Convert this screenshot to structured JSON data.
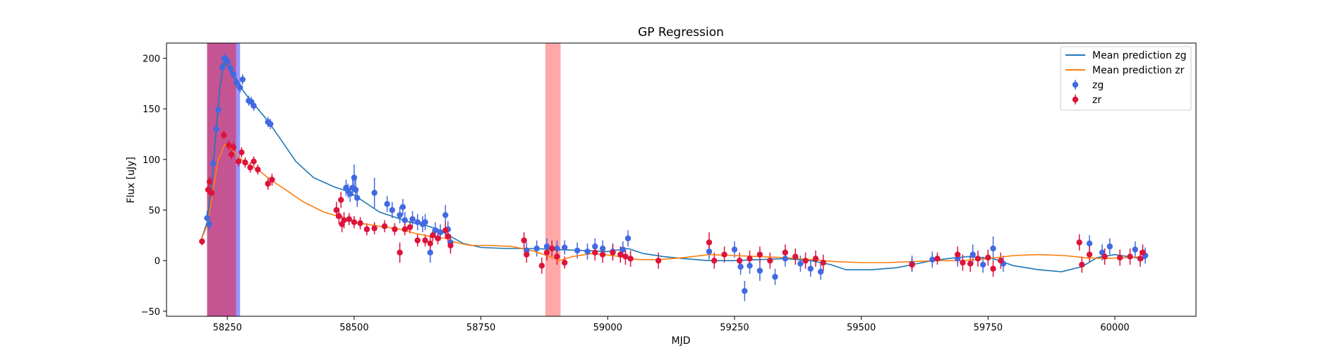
{
  "chart_data": {
    "type": "scatter",
    "title": "GP Regression",
    "xlabel": "MJD",
    "ylabel": "Flux [uJy]",
    "xlim": [
      58130,
      60160
    ],
    "ylim": [
      -55,
      215
    ],
    "xticks": [
      58250,
      58500,
      58750,
      59000,
      59250,
      59500,
      59750,
      60000
    ],
    "yticks": [
      -50,
      0,
      50,
      100,
      150,
      200
    ],
    "grid": false,
    "legend_position": "top-right",
    "spans": [
      {
        "x0": 58210,
        "x1": 58275,
        "color": "#6b6bff",
        "opacity": 0.7
      },
      {
        "x0": 58210,
        "x1": 58267,
        "color": "#d43d6e",
        "opacity": 0.75
      },
      {
        "x0": 58877,
        "x1": 58907,
        "color": "#ff7a7a",
        "opacity": 0.65
      }
    ],
    "lines": [
      {
        "name": "Mean prediction zg",
        "color": "#1f77b4",
        "points": [
          [
            58198,
            20
          ],
          [
            58210,
            38
          ],
          [
            58220,
            80
          ],
          [
            58228,
            130
          ],
          [
            58235,
            170
          ],
          [
            58243,
            195
          ],
          [
            58252,
            192
          ],
          [
            58262,
            183
          ],
          [
            58275,
            172
          ],
          [
            58290,
            162
          ],
          [
            58310,
            150
          ],
          [
            58330,
            138
          ],
          [
            58355,
            120
          ],
          [
            58385,
            98
          ],
          [
            58420,
            82
          ],
          [
            58460,
            73
          ],
          [
            58490,
            68
          ],
          [
            58520,
            58
          ],
          [
            58550,
            48
          ],
          [
            58580,
            43
          ],
          [
            58610,
            38
          ],
          [
            58640,
            35
          ],
          [
            58665,
            31
          ],
          [
            58690,
            24
          ],
          [
            58715,
            17
          ],
          [
            58750,
            13
          ],
          [
            58800,
            12
          ],
          [
            58850,
            12
          ],
          [
            58900,
            11
          ],
          [
            58950,
            10
          ],
          [
            59000,
            9
          ],
          [
            59040,
            12
          ],
          [
            59070,
            7
          ],
          [
            59110,
            4
          ],
          [
            59150,
            2
          ],
          [
            59200,
            0
          ],
          [
            59250,
            0
          ],
          [
            59300,
            1
          ],
          [
            59350,
            2
          ],
          [
            59400,
            0
          ],
          [
            59440,
            -4
          ],
          [
            59470,
            -9
          ],
          [
            59520,
            -9
          ],
          [
            59570,
            -7
          ],
          [
            59610,
            -3
          ],
          [
            59640,
            0
          ],
          [
            59670,
            2
          ],
          [
            59710,
            4
          ],
          [
            59760,
            2
          ],
          [
            59800,
            -5
          ],
          [
            59850,
            -9
          ],
          [
            59895,
            -11
          ],
          [
            59935,
            -6
          ],
          [
            59965,
            3
          ],
          [
            60000,
            6
          ],
          [
            60040,
            3
          ],
          [
            60060,
            2
          ]
        ]
      },
      {
        "name": "Mean prediction zr",
        "color": "#ff7f0e",
        "points": [
          [
            58198,
            20
          ],
          [
            58210,
            35
          ],
          [
            58222,
            70
          ],
          [
            58232,
            100
          ],
          [
            58245,
            115
          ],
          [
            58258,
            110
          ],
          [
            58270,
            103
          ],
          [
            58290,
            95
          ],
          [
            58310,
            90
          ],
          [
            58335,
            80
          ],
          [
            58365,
            70
          ],
          [
            58400,
            58
          ],
          [
            58440,
            48
          ],
          [
            58480,
            42
          ],
          [
            58510,
            37
          ],
          [
            58550,
            34
          ],
          [
            58590,
            31
          ],
          [
            58620,
            27
          ],
          [
            58650,
            24
          ],
          [
            58680,
            22
          ],
          [
            58700,
            18
          ],
          [
            58730,
            15
          ],
          [
            58770,
            15
          ],
          [
            58810,
            14
          ],
          [
            58850,
            10
          ],
          [
            58880,
            5
          ],
          [
            58905,
            0
          ],
          [
            58930,
            4
          ],
          [
            58970,
            7
          ],
          [
            59010,
            5
          ],
          [
            59060,
            1
          ],
          [
            59100,
            1
          ],
          [
            59150,
            3
          ],
          [
            59200,
            6
          ],
          [
            59250,
            5
          ],
          [
            59300,
            4
          ],
          [
            59350,
            3
          ],
          [
            59400,
            1
          ],
          [
            59450,
            -1
          ],
          [
            59500,
            -2
          ],
          [
            59550,
            -2
          ],
          [
            59600,
            -1
          ],
          [
            59650,
            0
          ],
          [
            59700,
            0
          ],
          [
            59750,
            2
          ],
          [
            59800,
            5
          ],
          [
            59850,
            6
          ],
          [
            59900,
            5
          ],
          [
            59940,
            3
          ],
          [
            59980,
            2
          ],
          [
            60020,
            3
          ],
          [
            60060,
            4
          ]
        ]
      }
    ],
    "series": [
      {
        "name": "zg",
        "color": "#4169e1",
        "points": [
          [
            58210,
            42,
            7
          ],
          [
            58214,
            36,
            6
          ],
          [
            58222,
            96,
            5
          ],
          [
            58228,
            130,
            6
          ],
          [
            58232,
            149,
            5
          ],
          [
            58240,
            191,
            6
          ],
          [
            58244,
            200,
            5
          ],
          [
            58250,
            197,
            5
          ],
          [
            58256,
            190,
            5
          ],
          [
            58262,
            184,
            5
          ],
          [
            58268,
            176,
            5
          ],
          [
            58275,
            171,
            5
          ],
          [
            58280,
            179,
            5
          ],
          [
            58292,
            158,
            5
          ],
          [
            58297,
            157,
            5
          ],
          [
            58302,
            153,
            5
          ],
          [
            58330,
            137,
            5
          ],
          [
            58335,
            135,
            5
          ],
          [
            58484,
            72,
            8
          ],
          [
            58488,
            69,
            7
          ],
          [
            58492,
            66,
            8
          ],
          [
            58497,
            72,
            8
          ],
          [
            58500,
            82,
            13
          ],
          [
            58503,
            70,
            10
          ],
          [
            58506,
            62,
            9
          ],
          [
            58540,
            67,
            15
          ],
          [
            58565,
            56,
            8
          ],
          [
            58575,
            50,
            8
          ],
          [
            58590,
            45,
            8
          ],
          [
            58596,
            53,
            8
          ],
          [
            58600,
            40,
            8
          ],
          [
            58615,
            41,
            8
          ],
          [
            58625,
            38,
            8
          ],
          [
            58635,
            36,
            8
          ],
          [
            58640,
            38,
            8
          ],
          [
            58650,
            8,
            10
          ],
          [
            58660,
            30,
            8
          ],
          [
            58670,
            28,
            8
          ],
          [
            58680,
            45,
            10
          ],
          [
            58685,
            31,
            8
          ],
          [
            58690,
            18,
            8
          ],
          [
            58840,
            10,
            8
          ],
          [
            58860,
            12,
            8
          ],
          [
            58880,
            14,
            8
          ],
          [
            58900,
            12,
            8
          ],
          [
            58915,
            13,
            7
          ],
          [
            58940,
            10,
            8
          ],
          [
            58960,
            9,
            8
          ],
          [
            58975,
            14,
            8
          ],
          [
            58990,
            12,
            8
          ],
          [
            59010,
            9,
            8
          ],
          [
            59030,
            11,
            8
          ],
          [
            59040,
            22,
            8
          ],
          [
            59200,
            9,
            8
          ],
          [
            59250,
            11,
            8
          ],
          [
            59262,
            -6,
            8
          ],
          [
            59270,
            -30,
            10
          ],
          [
            59280,
            -5,
            8
          ],
          [
            59300,
            -10,
            10
          ],
          [
            59330,
            -16,
            8
          ],
          [
            59350,
            2,
            8
          ],
          [
            59380,
            -3,
            8
          ],
          [
            59400,
            -8,
            8
          ],
          [
            59420,
            -11,
            8
          ],
          [
            59600,
            -3,
            8
          ],
          [
            59640,
            1,
            8
          ],
          [
            59690,
            2,
            8
          ],
          [
            59720,
            6,
            10
          ],
          [
            59740,
            -4,
            8
          ],
          [
            59760,
            12,
            12
          ],
          [
            59780,
            -3,
            8
          ],
          [
            59950,
            17,
            8
          ],
          [
            59975,
            8,
            8
          ],
          [
            59990,
            14,
            8
          ],
          [
            60040,
            11,
            8
          ],
          [
            60060,
            5,
            8
          ]
        ]
      },
      {
        "name": "zr",
        "color": "#dc143c",
        "points": [
          [
            58200,
            19,
            4
          ],
          [
            58212,
            70,
            5
          ],
          [
            58215,
            78,
            5
          ],
          [
            58219,
            67,
            5
          ],
          [
            58243,
            124,
            4
          ],
          [
            58253,
            114,
            5
          ],
          [
            58258,
            105,
            5
          ],
          [
            58262,
            112,
            5
          ],
          [
            58272,
            98,
            5
          ],
          [
            58278,
            107,
            5
          ],
          [
            58285,
            97,
            5
          ],
          [
            58295,
            92,
            5
          ],
          [
            58302,
            98,
            5
          ],
          [
            58310,
            90,
            5
          ],
          [
            58330,
            76,
            6
          ],
          [
            58338,
            80,
            6
          ],
          [
            58465,
            50,
            8
          ],
          [
            58470,
            44,
            8
          ],
          [
            58474,
            60,
            8
          ],
          [
            58476,
            36,
            8
          ],
          [
            58480,
            40,
            8
          ],
          [
            58490,
            41,
            6
          ],
          [
            58500,
            38,
            6
          ],
          [
            58512,
            37,
            6
          ],
          [
            58525,
            31,
            6
          ],
          [
            58540,
            32,
            6
          ],
          [
            58560,
            34,
            6
          ],
          [
            58580,
            31,
            6
          ],
          [
            58590,
            8,
            10
          ],
          [
            58600,
            31,
            6
          ],
          [
            58610,
            33,
            6
          ],
          [
            58625,
            20,
            6
          ],
          [
            58640,
            20,
            6
          ],
          [
            58650,
            17,
            8
          ],
          [
            58655,
            25,
            6
          ],
          [
            58665,
            22,
            6
          ],
          [
            58680,
            30,
            8
          ],
          [
            58685,
            24,
            6
          ],
          [
            58690,
            15,
            8
          ],
          [
            58835,
            20,
            8
          ],
          [
            58840,
            6,
            8
          ],
          [
            58870,
            -5,
            8
          ],
          [
            58880,
            8,
            8
          ],
          [
            58890,
            12,
            8
          ],
          [
            58900,
            4,
            8
          ],
          [
            58915,
            -2,
            6
          ],
          [
            58975,
            8,
            8
          ],
          [
            58990,
            6,
            8
          ],
          [
            59010,
            8,
            8
          ],
          [
            59025,
            6,
            8
          ],
          [
            59035,
            4,
            8
          ],
          [
            59045,
            2,
            8
          ],
          [
            59100,
            0,
            8
          ],
          [
            59200,
            18,
            10
          ],
          [
            59210,
            0,
            8
          ],
          [
            59230,
            6,
            8
          ],
          [
            59260,
            0,
            8
          ],
          [
            59280,
            2,
            8
          ],
          [
            59300,
            6,
            8
          ],
          [
            59320,
            0,
            8
          ],
          [
            59350,
            8,
            8
          ],
          [
            59370,
            4,
            8
          ],
          [
            59390,
            0,
            8
          ],
          [
            59410,
            2,
            8
          ],
          [
            59425,
            -2,
            8
          ],
          [
            59600,
            -4,
            6
          ],
          [
            59650,
            2,
            6
          ],
          [
            59690,
            6,
            8
          ],
          [
            59700,
            -2,
            8
          ],
          [
            59715,
            -3,
            8
          ],
          [
            59730,
            2,
            8
          ],
          [
            59750,
            3,
            8
          ],
          [
            59760,
            -8,
            8
          ],
          [
            59775,
            0,
            8
          ],
          [
            59930,
            18,
            8
          ],
          [
            59935,
            -4,
            8
          ],
          [
            59950,
            6,
            8
          ],
          [
            59980,
            4,
            8
          ],
          [
            60010,
            3,
            8
          ],
          [
            60030,
            4,
            8
          ],
          [
            60050,
            2,
            8
          ],
          [
            60055,
            8,
            8
          ]
        ]
      }
    ]
  }
}
